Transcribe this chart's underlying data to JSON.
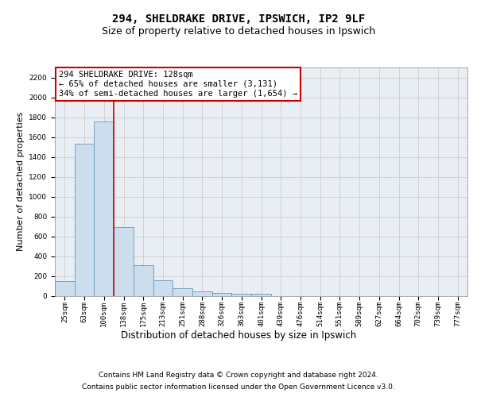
{
  "title": "294, SHELDRAKE DRIVE, IPSWICH, IP2 9LF",
  "subtitle": "Size of property relative to detached houses in Ipswich",
  "xlabel": "Distribution of detached houses by size in Ipswich",
  "ylabel": "Number of detached properties",
  "categories": [
    "25sqm",
    "63sqm",
    "100sqm",
    "138sqm",
    "175sqm",
    "213sqm",
    "251sqm",
    "288sqm",
    "326sqm",
    "363sqm",
    "401sqm",
    "439sqm",
    "476sqm",
    "514sqm",
    "551sqm",
    "589sqm",
    "627sqm",
    "664sqm",
    "702sqm",
    "739sqm",
    "777sqm"
  ],
  "values": [
    150,
    1530,
    1760,
    690,
    310,
    160,
    80,
    45,
    25,
    20,
    20,
    0,
    0,
    0,
    0,
    0,
    0,
    0,
    0,
    0,
    0
  ],
  "bar_color": "#ccdded",
  "bar_edge_color": "#6699bb",
  "vline_x_index": 3,
  "vline_color": "#cc0000",
  "annotation_text": "294 SHELDRAKE DRIVE: 128sqm\n← 65% of detached houses are smaller (3,131)\n34% of semi-detached houses are larger (1,654) →",
  "annotation_box_color": "white",
  "annotation_box_edge_color": "#cc0000",
  "ylim": [
    0,
    2300
  ],
  "yticks": [
    0,
    200,
    400,
    600,
    800,
    1000,
    1200,
    1400,
    1600,
    1800,
    2000,
    2200
  ],
  "grid_color": "#c8c8c8",
  "background_color": "#e8eef4",
  "footer_line1": "Contains HM Land Registry data © Crown copyright and database right 2024.",
  "footer_line2": "Contains public sector information licensed under the Open Government Licence v3.0.",
  "title_fontsize": 10,
  "subtitle_fontsize": 9,
  "tick_fontsize": 6.5,
  "ylabel_fontsize": 8,
  "xlabel_fontsize": 8.5,
  "footer_fontsize": 6.5,
  "annotation_fontsize": 7.5
}
